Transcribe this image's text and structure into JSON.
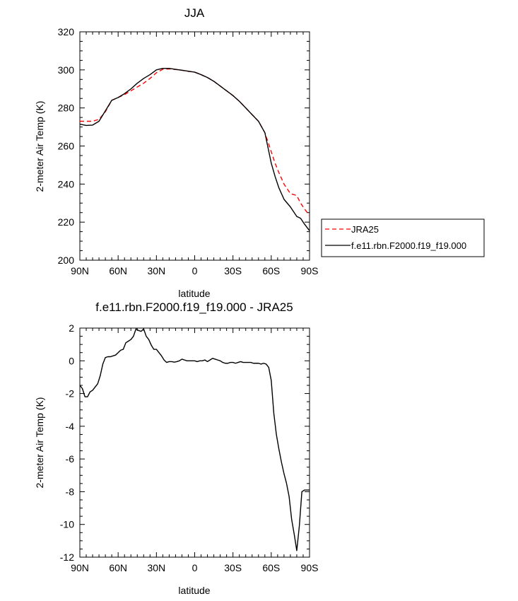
{
  "chart_data": [
    {
      "type": "line",
      "title": "JJA",
      "xlabel": "latitude",
      "ylabel": "2-meter Air Temp (K)",
      "xlim": [
        90,
        -90
      ],
      "ylim": [
        200,
        320
      ],
      "xticks": [
        90,
        60,
        30,
        0,
        -30,
        -60,
        -90
      ],
      "xtick_labels": [
        "90N",
        "60N",
        "30N",
        "0",
        "30S",
        "60S",
        "90S"
      ],
      "yticks": [
        200,
        220,
        240,
        260,
        280,
        300,
        320
      ],
      "ytick_labels": [
        "200",
        "220",
        "240",
        "260",
        "280",
        "300",
        "320"
      ],
      "grid": false,
      "legend_position": "right",
      "series": [
        {
          "name": "JRA25",
          "color": "#ff0000",
          "dash": "dashed",
          "x": [
            90,
            85,
            80,
            75,
            70,
            65,
            60,
            55,
            50,
            45,
            40,
            35,
            30,
            25,
            20,
            15,
            10,
            5,
            0,
            -5,
            -10,
            -15,
            -20,
            -25,
            -30,
            -35,
            -40,
            -45,
            -50,
            -55,
            -60,
            -63,
            -66,
            -70,
            -75,
            -80,
            -83,
            -86,
            -90
          ],
          "y": [
            273,
            273,
            273,
            274,
            278,
            284,
            285.5,
            287,
            289,
            291,
            293,
            295.5,
            298.5,
            300.3,
            300.5,
            300.2,
            299.8,
            299.2,
            298.8,
            297.5,
            296,
            294,
            291.5,
            289,
            286.5,
            283.5,
            280,
            276.5,
            273,
            267,
            257,
            251,
            246,
            240,
            235,
            234,
            230,
            227,
            223.5
          ]
        },
        {
          "name": "f.e11.rbn.F2000.f19_f19.000",
          "color": "#000000",
          "dash": "solid",
          "x": [
            90,
            85,
            80,
            75,
            70,
            65,
            60,
            55,
            50,
            45,
            40,
            35,
            30,
            25,
            20,
            15,
            10,
            5,
            0,
            -5,
            -10,
            -15,
            -20,
            -25,
            -30,
            -35,
            -40,
            -45,
            -50,
            -55,
            -60,
            -63,
            -66,
            -70,
            -75,
            -80,
            -83,
            -86,
            -90
          ],
          "y": [
            271.5,
            270.8,
            271,
            273,
            278.5,
            284,
            285.5,
            287.5,
            290,
            293,
            295.5,
            297.5,
            300,
            300.8,
            300.8,
            300.3,
            299.8,
            299.3,
            298.8,
            297.5,
            296,
            294,
            291.5,
            289,
            286.5,
            283.5,
            280,
            276.5,
            273,
            267,
            251,
            244,
            238,
            232,
            228,
            223,
            222,
            219,
            215.5
          ]
        }
      ]
    },
    {
      "type": "line",
      "title": "f.e11.rbn.F2000.f19_f19.000 - JRA25",
      "xlabel": "latitude",
      "ylabel": "2-meter Air Temp (K)",
      "xlim": [
        90,
        -90
      ],
      "ylim": [
        -12,
        2
      ],
      "xticks": [
        90,
        60,
        30,
        0,
        -30,
        -60,
        -90
      ],
      "xtick_labels": [
        "90N",
        "60N",
        "30N",
        "0",
        "30S",
        "60S",
        "90S"
      ],
      "yticks": [
        -12,
        -10,
        -8,
        -6,
        -4,
        -2,
        0,
        2
      ],
      "ytick_labels": [
        "-12",
        "-10",
        "-8",
        "-6",
        "-4",
        "-2",
        "0",
        "2"
      ],
      "grid": false,
      "series": [
        {
          "color": "#000000",
          "dash": "solid",
          "x": [
            90,
            88,
            86,
            84,
            82,
            80,
            78,
            76,
            74,
            72,
            70,
            68,
            66,
            64,
            62,
            60,
            58,
            56,
            54,
            52,
            50,
            48,
            46,
            44,
            42,
            40,
            38,
            36,
            34,
            32,
            30,
            28,
            26,
            24,
            22,
            20,
            18,
            16,
            14,
            12,
            10,
            8,
            6,
            4,
            2,
            0,
            -2,
            -4,
            -6,
            -8,
            -10,
            -12,
            -14,
            -16,
            -18,
            -20,
            -22,
            -24,
            -26,
            -28,
            -30,
            -32,
            -34,
            -36,
            -38,
            -40,
            -42,
            -44,
            -46,
            -48,
            -50,
            -52,
            -54,
            -56,
            -58,
            -60,
            -62,
            -64,
            -66,
            -68,
            -70,
            -72,
            -74,
            -76,
            -78,
            -80,
            -82,
            -84,
            -86,
            -88,
            -90
          ],
          "y": [
            -1.5,
            -1.7,
            -2.2,
            -2.2,
            -1.9,
            -1.8,
            -1.6,
            -1.4,
            -0.9,
            -0.2,
            0.2,
            0.25,
            0.25,
            0.3,
            0.35,
            0.5,
            0.65,
            0.7,
            1.1,
            1.2,
            1.3,
            1.5,
            1.95,
            1.85,
            1.8,
            1.95,
            1.5,
            1.3,
            0.95,
            0.7,
            0.7,
            0.5,
            0.3,
            0.05,
            -0.1,
            -0.05,
            -0.05,
            -0.08,
            -0.05,
            0.0,
            0.1,
            0.05,
            0.0,
            0.0,
            0.0,
            0.0,
            -0.05,
            0.0,
            0.0,
            0.05,
            -0.05,
            0.05,
            0.15,
            0.1,
            0.05,
            0.0,
            -0.1,
            -0.15,
            -0.15,
            -0.1,
            -0.1,
            -0.15,
            -0.1,
            -0.05,
            -0.1,
            -0.1,
            -0.1,
            -0.1,
            -0.15,
            -0.15,
            -0.15,
            -0.2,
            -0.15,
            -0.2,
            -0.4,
            -1.2,
            -3.2,
            -4.5,
            -5.4,
            -6.2,
            -6.9,
            -7.5,
            -8.3,
            -9.7,
            -10.6,
            -11.6,
            -10.1,
            -8.0,
            -7.9,
            -7.9,
            -7.9
          ]
        }
      ]
    }
  ]
}
